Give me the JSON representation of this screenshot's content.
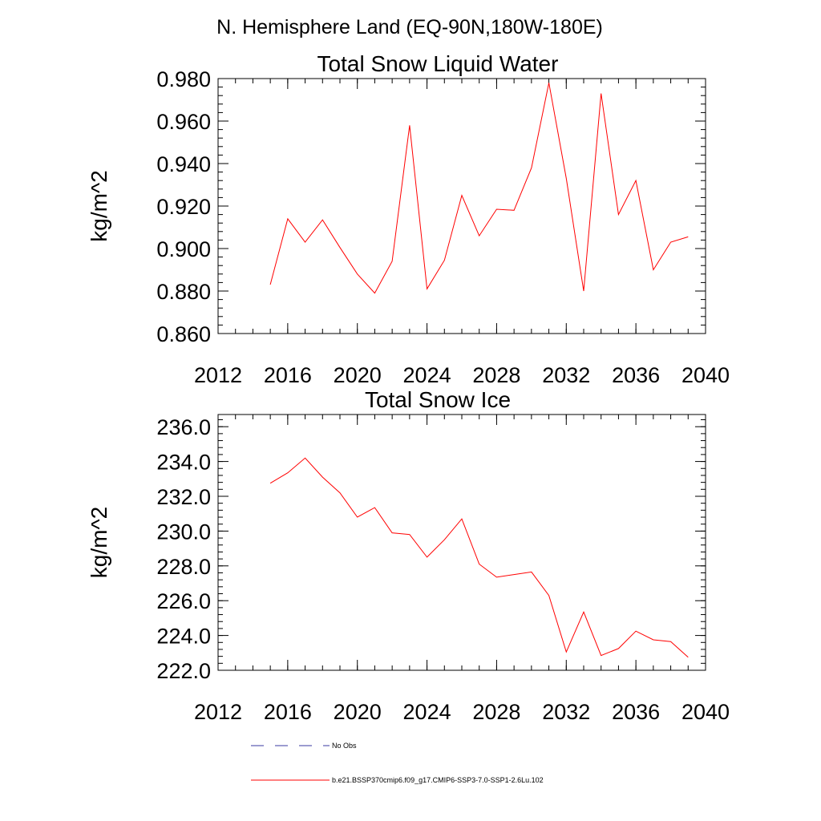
{
  "figure": {
    "title": "N. Hemisphere Land (EQ-90N,180W-180E)"
  },
  "chart_data": [
    {
      "type": "line",
      "title": "Total Snow Liquid Water",
      "xlabel": "",
      "ylabel": "kg/m^2",
      "xlim": [
        2012,
        2040
      ],
      "ylim": [
        0.86,
        0.98
      ],
      "xticks": [
        2012,
        2016,
        2020,
        2024,
        2028,
        2032,
        2036,
        2040
      ],
      "xtick_labels": [
        "2012",
        "2016",
        "2020",
        "2024",
        "2028",
        "2032",
        "2036",
        "2040"
      ],
      "yticks": [
        0.86,
        0.88,
        0.9,
        0.92,
        0.94,
        0.96,
        0.98
      ],
      "ytick_labels": [
        "0.860",
        "0.880",
        "0.900",
        "0.920",
        "0.940",
        "0.960",
        "0.980"
      ],
      "grid": false,
      "x": [
        2015,
        2016,
        2017,
        2018,
        2019,
        2020,
        2021,
        2022,
        2023,
        2024,
        2025,
        2026,
        2027,
        2028,
        2029,
        2030,
        2031,
        2032,
        2033,
        2034,
        2035,
        2036,
        2037,
        2038,
        2039
      ],
      "series": [
        {
          "color": "#ff0000",
          "values": [
            0.883,
            0.914,
            0.903,
            0.9135,
            0.9005,
            0.888,
            0.879,
            0.894,
            0.958,
            0.881,
            0.8945,
            0.925,
            0.906,
            0.9185,
            0.918,
            0.938,
            0.978,
            0.933,
            0.88,
            0.973,
            0.916,
            0.932,
            0.89,
            0.903,
            0.9055
          ]
        }
      ]
    },
    {
      "type": "line",
      "title": "Total Snow Ice",
      "xlabel": "",
      "ylabel": "kg/m^2",
      "xlim": [
        2012,
        2040
      ],
      "ylim": [
        222.0,
        236.7
      ],
      "xticks": [
        2012,
        2016,
        2020,
        2024,
        2028,
        2032,
        2036,
        2040
      ],
      "xtick_labels": [
        "2012",
        "2016",
        "2020",
        "2024",
        "2028",
        "2032",
        "2036",
        "2040"
      ],
      "yticks": [
        222,
        224,
        226,
        228,
        230,
        232,
        234,
        236
      ],
      "ytick_labels": [
        "222.0",
        "224.0",
        "226.0",
        "228.0",
        "230.0",
        "232.0",
        "234.0",
        "236.0"
      ],
      "grid": false,
      "x": [
        2015,
        2016,
        2017,
        2018,
        2019,
        2020,
        2021,
        2022,
        2023,
        2024,
        2025,
        2026,
        2027,
        2028,
        2029,
        2030,
        2031,
        2032,
        2033,
        2034,
        2035,
        2036,
        2037,
        2038,
        2039
      ],
      "series": [
        {
          "color": "#ff0000",
          "values": [
            232.75,
            233.35,
            234.2,
            233.1,
            232.2,
            230.8,
            231.35,
            229.9,
            229.8,
            228.5,
            229.5,
            230.7,
            228.1,
            227.35,
            227.5,
            227.65,
            226.3,
            223.05,
            225.35,
            222.85,
            223.25,
            224.25,
            223.75,
            223.65,
            222.75
          ]
        }
      ]
    }
  ],
  "legend": {
    "placement": "bottom",
    "items": [
      {
        "label": "No Obs",
        "color": "#3a3aa0",
        "style": "dashed"
      },
      {
        "label": "b.e21.BSSP370cmip6.f09_g17.CMIP6-SSP3-7.0-SSP1-2.6Lu.102",
        "color": "#ff0000",
        "style": "solid"
      }
    ]
  }
}
